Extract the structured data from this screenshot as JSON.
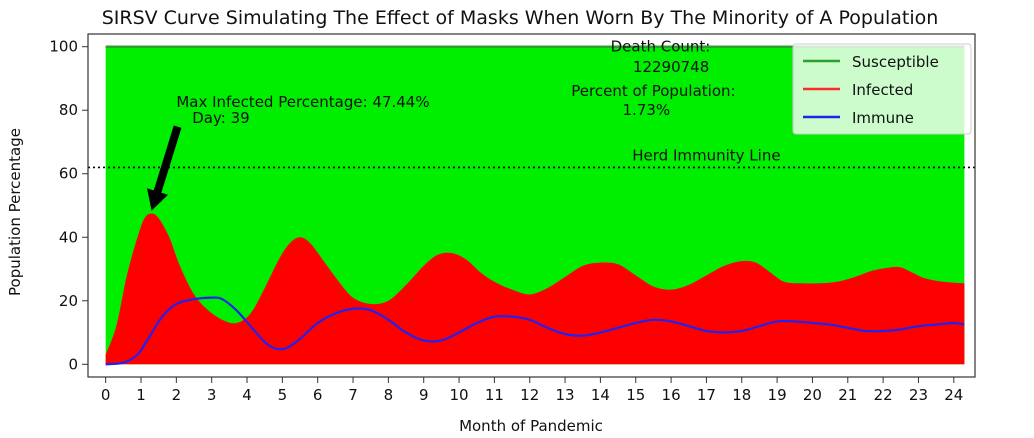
{
  "chart_data": {
    "type": "area",
    "title": "SIRSV Curve Simulating The Effect of Masks When Worn By The Minority of A Population",
    "xlabel": "Month of Pandemic",
    "ylabel": "Population Percentage",
    "xlim": [
      -0.5,
      24.6
    ],
    "ylim": [
      -4,
      104
    ],
    "xticks": [
      0,
      1,
      2,
      3,
      4,
      5,
      6,
      7,
      8,
      9,
      10,
      11,
      12,
      13,
      14,
      15,
      16,
      17,
      18,
      19,
      20,
      21,
      22,
      23,
      24
    ],
    "yticks": [
      0,
      20,
      40,
      60,
      80,
      100
    ],
    "legend": {
      "position": "top-right",
      "entries": [
        {
          "name": "Susceptible",
          "color": "#2ca02c"
        },
        {
          "name": "Infected",
          "color": "#ff2a2a"
        },
        {
          "name": "Immune",
          "color": "#2222ee"
        }
      ]
    },
    "colors": {
      "susceptible_fill": "#00ee00",
      "infected_fill": "#ff0000",
      "immune_line": "#2222ee",
      "susceptible_line": "#2ca02c"
    },
    "herd_immunity": {
      "y": 62,
      "label": "Herd Immunity Line"
    },
    "max_annotation": {
      "line1": "Max Infected Percentage: 47.44%",
      "line2": "Day: 39",
      "x": 1.3,
      "y": 47.44
    },
    "death_info": {
      "label": "Death Count:",
      "count": "12290748",
      "percent_label": "Percent of Population:",
      "percent": "1.73%"
    },
    "series": [
      {
        "name": "Susceptible",
        "x": [
          0,
          24.3
        ],
        "values": [
          100,
          100
        ]
      },
      {
        "name": "Infected",
        "x": [
          0,
          0.3,
          0.6,
          0.9,
          1.1,
          1.3,
          1.5,
          1.8,
          2.1,
          2.5,
          2.9,
          3.3,
          3.7,
          4.1,
          4.5,
          4.9,
          5.2,
          5.5,
          5.8,
          6.2,
          6.6,
          7.0,
          7.5,
          8.0,
          8.5,
          9.0,
          9.4,
          9.8,
          10.2,
          10.6,
          11.0,
          11.5,
          12.0,
          12.5,
          13.0,
          13.5,
          14.0,
          14.5,
          15.0,
          15.5,
          16.0,
          16.5,
          17.0,
          17.5,
          18.0,
          18.4,
          18.8,
          19.2,
          19.7,
          20.2,
          20.7,
          21.2,
          21.7,
          22.2,
          22.5,
          22.8,
          23.2,
          23.7,
          24.3
        ],
        "values": [
          3,
          12,
          28,
          40,
          46,
          47.44,
          46,
          40,
          31,
          22,
          17,
          14,
          13,
          16,
          24,
          33,
          38,
          40,
          38,
          32,
          26,
          21,
          19,
          20,
          25,
          31,
          34.5,
          35,
          33,
          29,
          26,
          23.5,
          22,
          24,
          27.5,
          31,
          32,
          31.5,
          28,
          24.5,
          23.5,
          25,
          28,
          31,
          32.5,
          32,
          29,
          26,
          25.5,
          25.5,
          26,
          27.5,
          29.5,
          30.5,
          30.5,
          29,
          27,
          26,
          25.5
        ]
      },
      {
        "name": "Immune",
        "x": [
          0,
          0.5,
          0.9,
          1.2,
          1.6,
          2.0,
          2.5,
          3.0,
          3.3,
          3.7,
          4.1,
          4.5,
          4.8,
          5.1,
          5.5,
          6.0,
          6.5,
          7.0,
          7.5,
          8.0,
          8.5,
          9.0,
          9.5,
          10.0,
          10.5,
          11.0,
          11.5,
          12.0,
          12.5,
          13.0,
          13.5,
          14.0,
          14.5,
          15.0,
          15.5,
          16.0,
          16.5,
          17.0,
          17.5,
          18.0,
          18.5,
          19.0,
          19.5,
          20.0,
          20.5,
          21.0,
          21.5,
          22.0,
          22.5,
          23.0,
          23.5,
          24.0,
          24.3
        ],
        "values": [
          0,
          0.5,
          3,
          8,
          15,
          19,
          20.5,
          21,
          20.5,
          17,
          12,
          7,
          5,
          5,
          8,
          13,
          16,
          17.5,
          17,
          14,
          10,
          7.5,
          7.5,
          10,
          13,
          15,
          15,
          14,
          11.5,
          9.5,
          9,
          10,
          11.5,
          13,
          14,
          13.5,
          12,
          10.5,
          10,
          10.5,
          12,
          13.5,
          13.5,
          13,
          12.5,
          11.5,
          10.5,
          10.5,
          11,
          12,
          12.5,
          13,
          12.5
        ]
      }
    ]
  }
}
